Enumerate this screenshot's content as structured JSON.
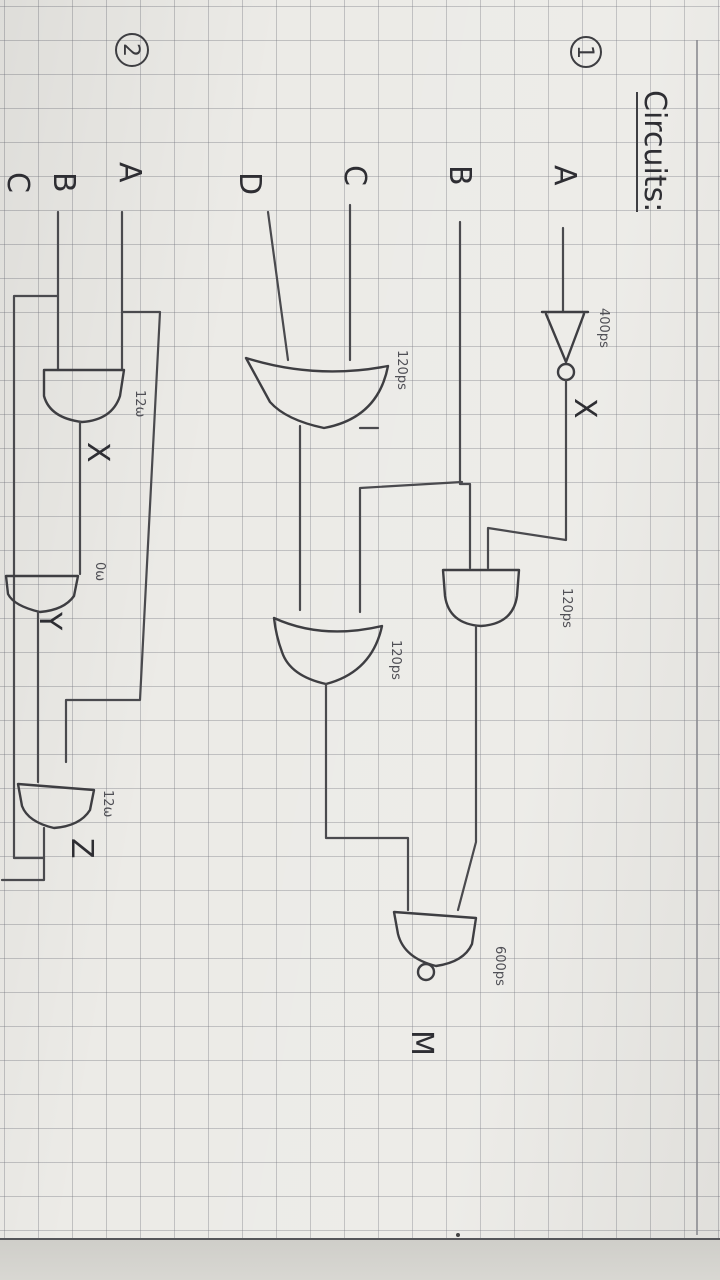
{
  "heading": "Circuits:",
  "circuit1": {
    "number": "1",
    "inputs": {
      "a": "A",
      "b": "B",
      "c": "C",
      "d": "D"
    },
    "intermediate_x": "X",
    "output": "M",
    "delays": {
      "not_gate": "400ps",
      "or_gate_1": "120ps",
      "and_gate": "120ps",
      "or_gate_2": "120ps",
      "nand_gate": "600ps"
    }
  },
  "circuit2": {
    "number": "2",
    "inputs": {
      "a": "A",
      "b": "B",
      "c": "C"
    },
    "outputs": {
      "x": "X",
      "y": "Y",
      "z": "Z"
    },
    "delays": {
      "gate_1": "12ω",
      "gate_2": "0ω",
      "gate_3": "12ω"
    }
  }
}
